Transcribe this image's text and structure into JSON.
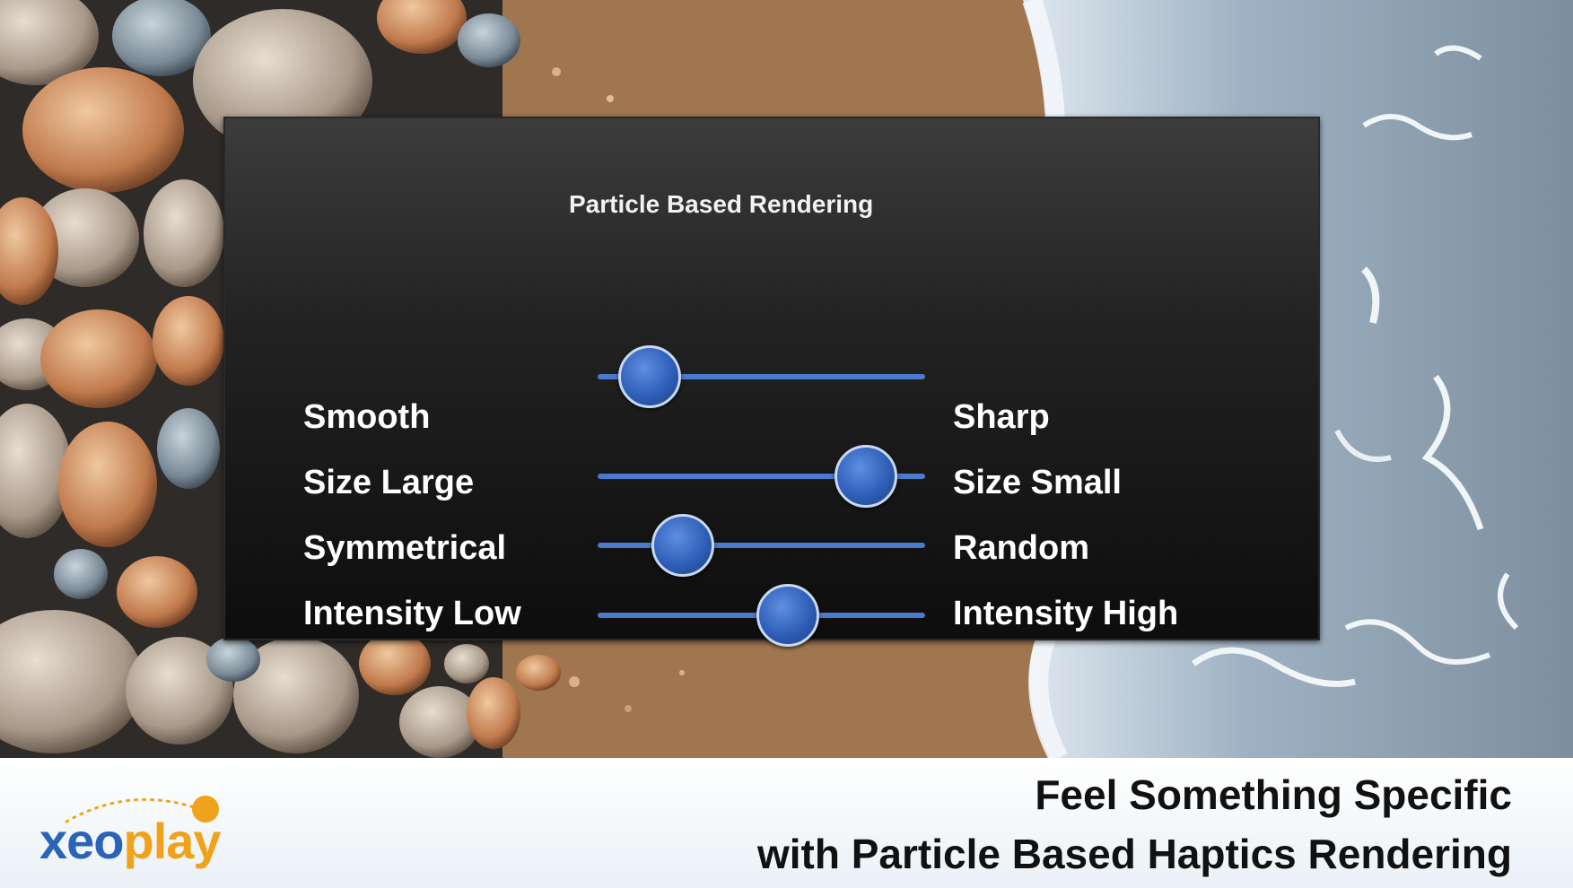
{
  "panel": {
    "title": "Particle Based Rendering",
    "sliders": [
      {
        "left_label": "Smooth",
        "right_label": "Sharp",
        "value": 0.16
      },
      {
        "left_label": "Size Large",
        "right_label": "Size Small",
        "value": 0.82
      },
      {
        "left_label": "Symmetrical",
        "right_label": "Random",
        "value": 0.26
      },
      {
        "left_label": "Intensity Low",
        "right_label": "Intensity High",
        "value": 0.58
      }
    ]
  },
  "footer": {
    "logo_part1": "xeo",
    "logo_part2": "play",
    "line1": "Feel Something Specific",
    "line2": "with Particle Based Haptics Rendering"
  },
  "colors": {
    "accent_blue": "#4a7acc",
    "logo_blue": "#2a63b8",
    "logo_orange": "#f0a21a"
  }
}
